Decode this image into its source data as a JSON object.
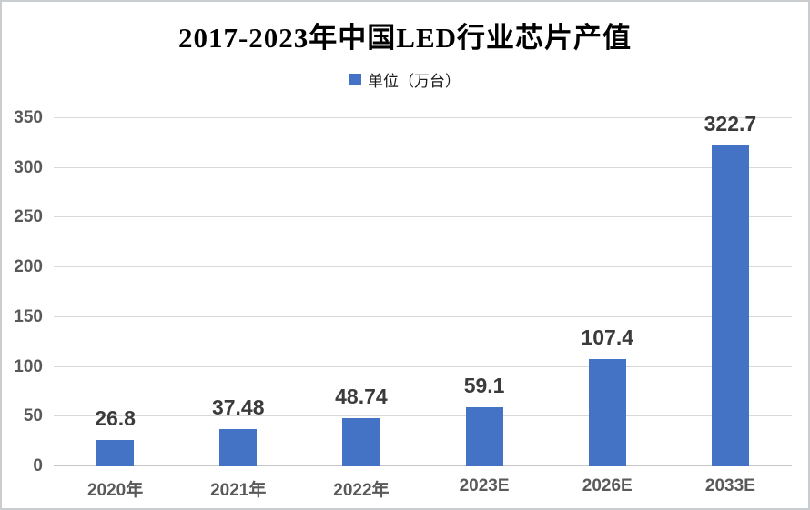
{
  "chart_data": {
    "type": "bar",
    "title": "2017-2023年中国LED行业芯片产值",
    "legend": {
      "label": "单位（万台）",
      "marker_color": "#4472C4",
      "position": "top"
    },
    "categories": [
      "2020年",
      "2021年",
      "2022年",
      "2023E",
      "2026E",
      "2033E"
    ],
    "values": [
      26.8,
      37.48,
      48.74,
      59.1,
      107.4,
      322.7
    ],
    "value_labels": [
      "26.8",
      "37.48",
      "48.74",
      "59.1",
      "107.4",
      "322.7"
    ],
    "ylim": [
      0,
      350
    ],
    "yticks": [
      0,
      50,
      100,
      150,
      200,
      250,
      300,
      350
    ],
    "bar_color": "#4472C4",
    "gridline_color": "#D9D9D9",
    "grid": true,
    "xlabel": "",
    "ylabel": ""
  }
}
